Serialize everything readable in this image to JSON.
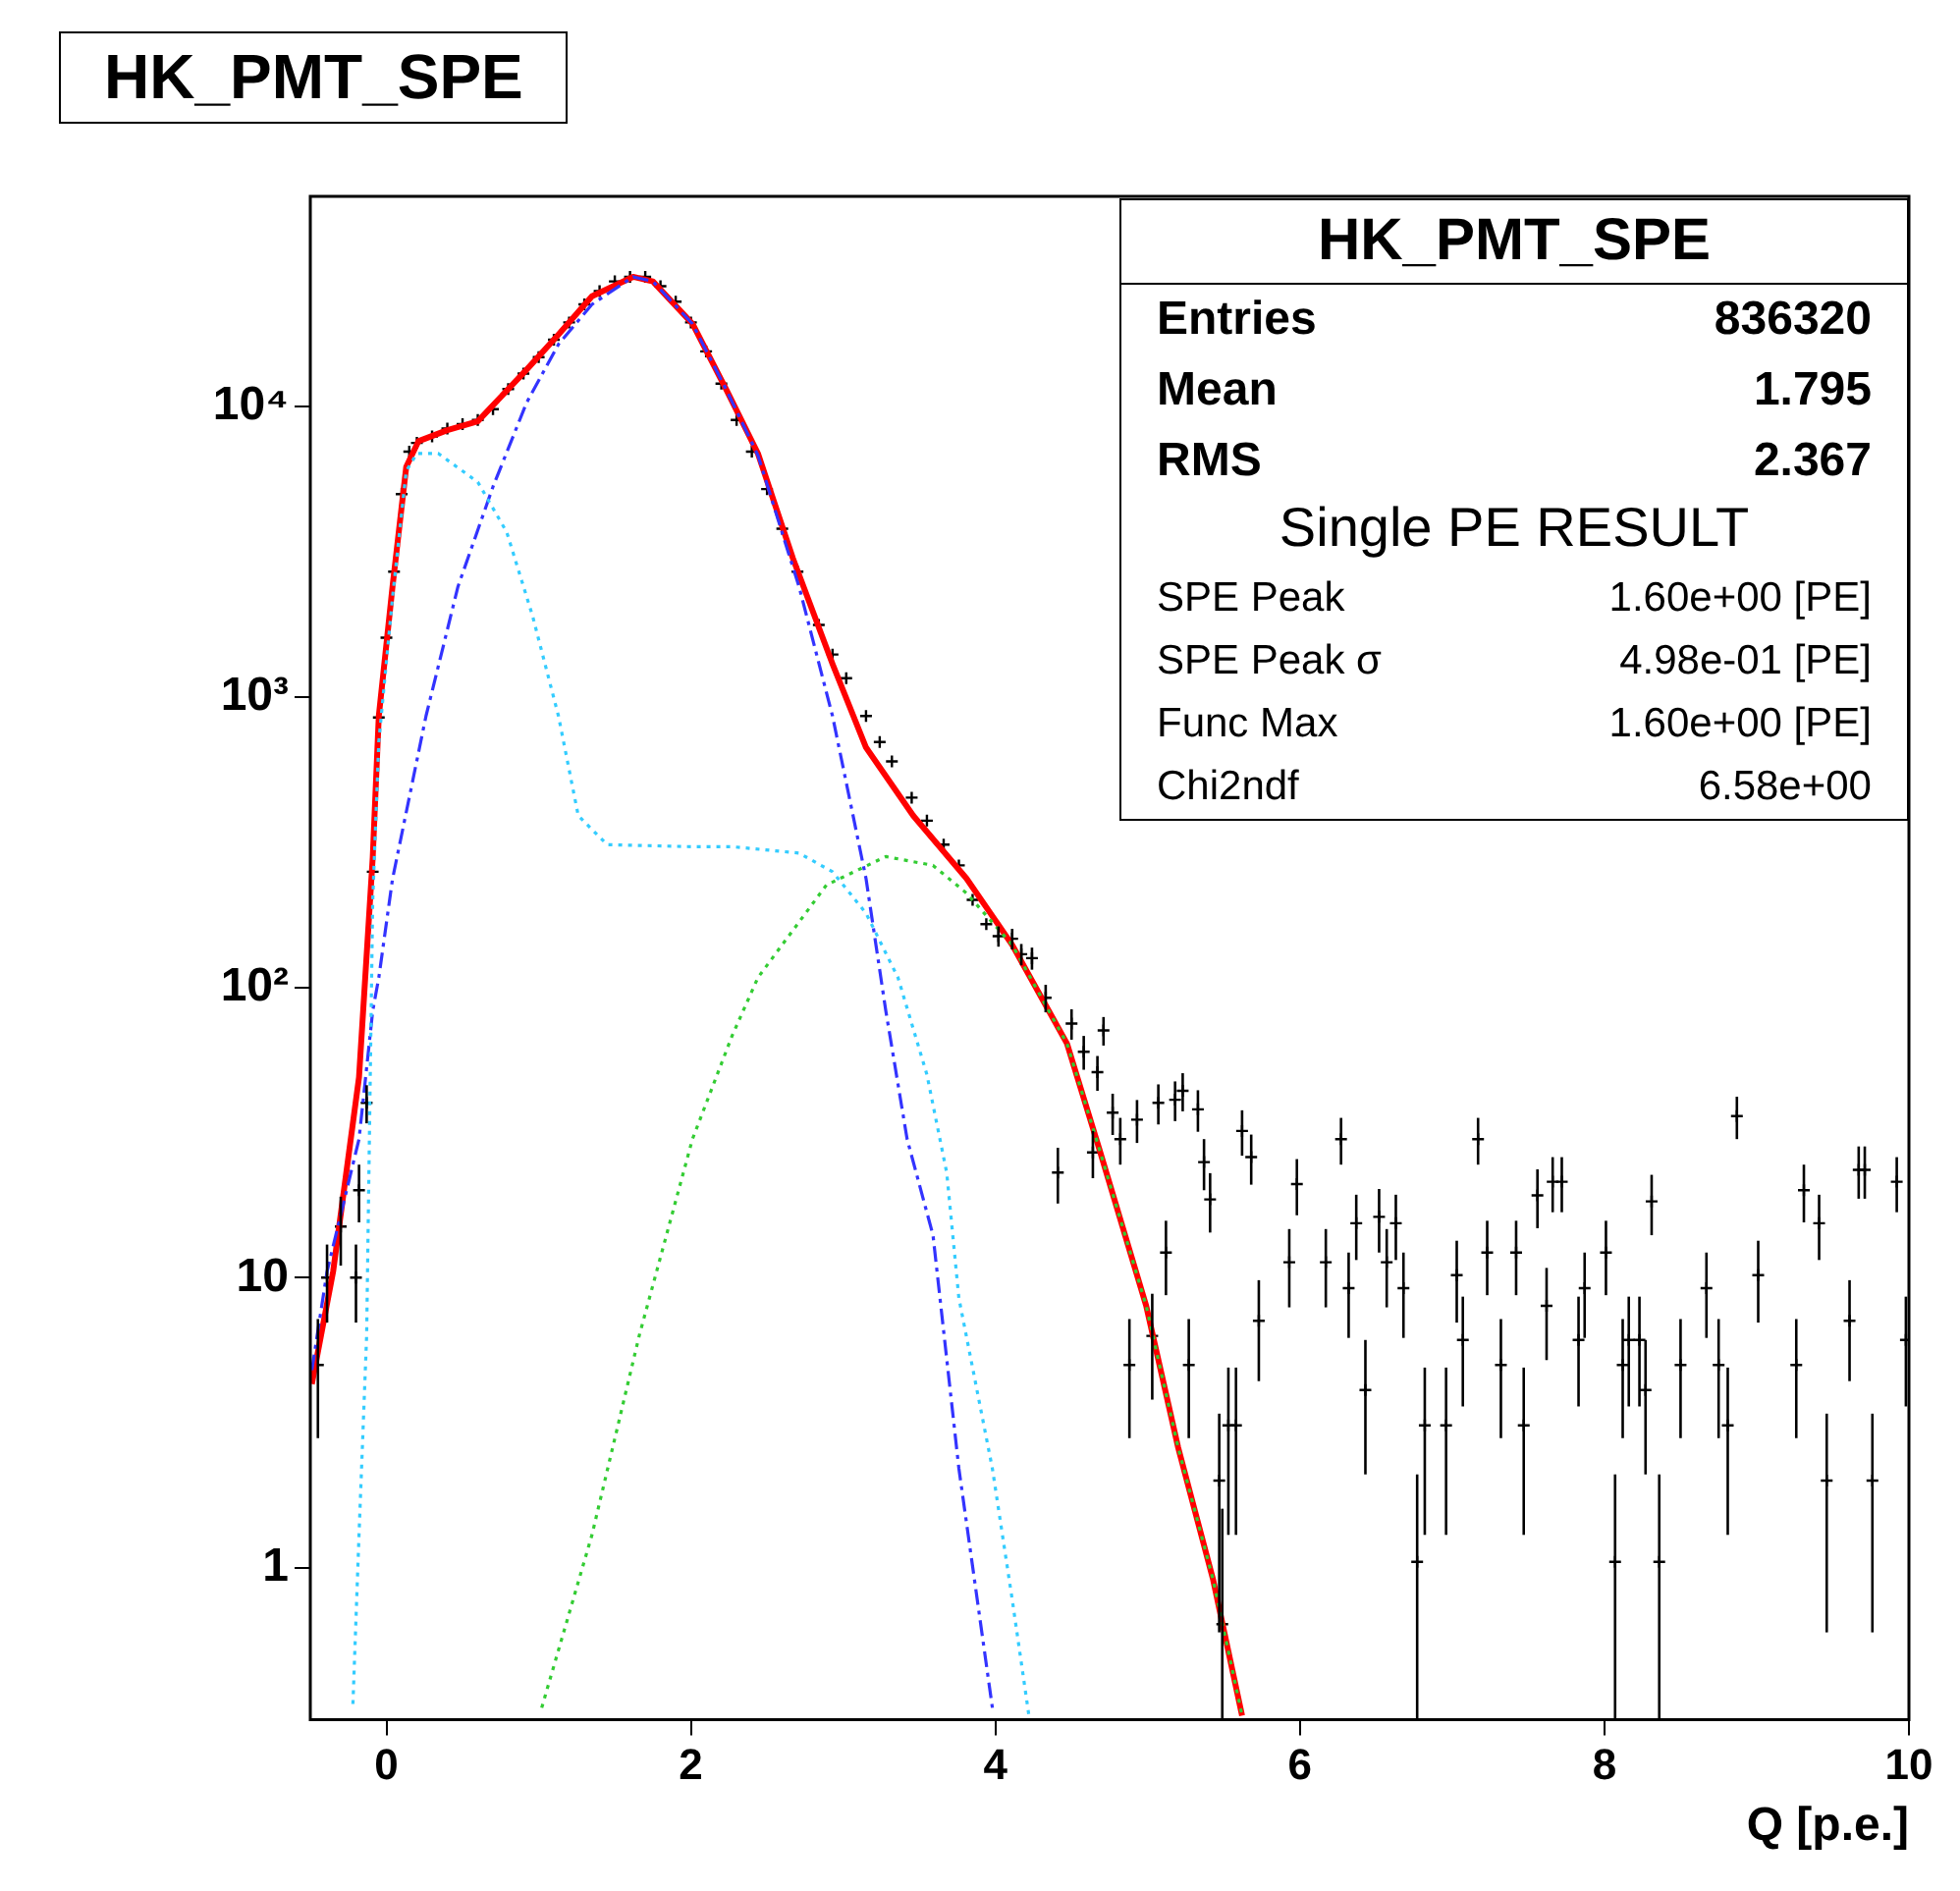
{
  "chart_data": {
    "type": "scatter",
    "title": "HK_PMT_SPE",
    "xlabel": "Q [p.e.]",
    "log": "y",
    "grid": false,
    "legend": false,
    "xlim": [
      -0.5,
      10
    ],
    "xticks": [
      0,
      2,
      4,
      6,
      8,
      10
    ],
    "ylim": [
      0.3,
      53000
    ],
    "yticks": [
      1,
      10,
      {
        "value": 100,
        "label": "10²"
      },
      {
        "value": 1000,
        "label": "10³"
      },
      {
        "value": 10000,
        "label": "10⁴"
      }
    ],
    "annotations": [
      "HK_PMT_SPE",
      "Entries",
      "836320",
      "Mean",
      "1.795",
      "RMS",
      "2.367",
      "Single PE RESULT",
      "SPE Peak",
      "1.60e+00 [PE]",
      "SPE Peak σ",
      "4.98e-01 [PE]",
      "Func Max",
      "1.60e+00 [PE]",
      "Chi2ndf",
      "6.58e+00"
    ],
    "series": [
      {
        "color": "#000000",
        "marker": "cross",
        "x": [
          -0.45,
          -0.39,
          -0.3,
          -0.2,
          -0.18,
          -0.13,
          -0.09,
          -0.05,
          0,
          0.05,
          0.1,
          0.15,
          0.2,
          0.3,
          0.4,
          0.5,
          0.6,
          0.7,
          0.8,
          0.9,
          1.0,
          1.1,
          1.2,
          1.3,
          1.4,
          1.5,
          1.6,
          1.7,
          1.8,
          1.9,
          2.0,
          2.1,
          2.2,
          2.3,
          2.4,
          2.5,
          2.6,
          2.7,
          2.84,
          2.93,
          3.02,
          3.15,
          3.24,
          3.32,
          3.45,
          3.55,
          3.66,
          3.76,
          3.85,
          3.94,
          4.02,
          4.11,
          4.17,
          4.24,
          4.33,
          4.41,
          4.5,
          4.58,
          4.64,
          4.67,
          4.71,
          4.77,
          4.82,
          4.88,
          4.93,
          5.03,
          5.07,
          5.12,
          5.18,
          5.23,
          5.27,
          5.33,
          5.37,
          5.41,
          5.47,
          5.49,
          5.53,
          5.58,
          5.62,
          5.68,
          5.73,
          5.93,
          5.98,
          6.17,
          6.27,
          6.32,
          6.37,
          6.43,
          6.52,
          6.57,
          6.63,
          6.68,
          6.77,
          6.82,
          6.96,
          7.03,
          7.07,
          7.17,
          7.23,
          7.32,
          7.42,
          7.47,
          7.56,
          7.62,
          7.66,
          7.72,
          7.83,
          7.87,
          8.01,
          8.07,
          8.12,
          8.16,
          8.23,
          8.27,
          8.31,
          8.36,
          8.5,
          8.67,
          8.75,
          8.81,
          8.87,
          9.01,
          9.26,
          9.31,
          9.41,
          9.46,
          9.61,
          9.67,
          9.71,
          9.76,
          9.92,
          9.98
        ],
        "values": [
          5,
          10,
          15,
          10,
          20,
          40,
          250,
          850,
          1600,
          2700,
          5000,
          7000,
          7500,
          7900,
          8400,
          8700,
          9000,
          9800,
          11500,
          13000,
          14800,
          17000,
          19500,
          22500,
          25000,
          27000,
          28000,
          28000,
          26000,
          23000,
          19500,
          15500,
          12000,
          9000,
          7000,
          5200,
          3800,
          2700,
          1770,
          1400,
          1160,
          860,
          700,
          600,
          450,
          375,
          310,
          263,
          200,
          165,
          150,
          147,
          130,
          126,
          92,
          23,
          75,
          60,
          27,
          51,
          71,
          37,
          30,
          5.0,
          35,
          6.3,
          40,
          12.2,
          41,
          44,
          5.0,
          38,
          25,
          18.6,
          2.0,
          0.64,
          3.1,
          3.1,
          32,
          26,
          7.1,
          11.3,
          21,
          11.3,
          30,
          9.2,
          15.4,
          4.1,
          16.2,
          11.3,
          15.4,
          9.2,
          1.05,
          3.1,
          3.1,
          10.2,
          6.1,
          30,
          12.2,
          5.0,
          12.2,
          3.1,
          19.2,
          8.0,
          21.4,
          21.4,
          6.1,
          9.2,
          12.2,
          1.05,
          5.0,
          6.1,
          6.1,
          4.1,
          18.3,
          1.05,
          5.0,
          9.2,
          5.0,
          3.1,
          36,
          10.2,
          5.0,
          20,
          15.4,
          2.0,
          7.1,
          23.5,
          23.5,
          2.0,
          21.4,
          6.1
        ],
        "errors": [
          2.2,
          3,
          4,
          3,
          4.5,
          6,
          null,
          null,
          null,
          null,
          null,
          null,
          null,
          null,
          null,
          null,
          null,
          null,
          null,
          null,
          null,
          null,
          null,
          null,
          null,
          null,
          null,
          null,
          null,
          null,
          null,
          null,
          null,
          null,
          null,
          null,
          null,
          null,
          null,
          null,
          null,
          null,
          null,
          null,
          null,
          null,
          null,
          null,
          null,
          null,
          12,
          12,
          11,
          11,
          10,
          5,
          9,
          8,
          5,
          7,
          8,
          6,
          5.5,
          2.2,
          5.9,
          2.5,
          6.3,
          3.5,
          6.4,
          6.6,
          2.2,
          6.2,
          5,
          4.3,
          1.4,
          [
            0.3,
            1.6
          ],
          1.8,
          1.8,
          5.7,
          5.1,
          2.7,
          3.4,
          4.6,
          3.4,
          5.5,
          3,
          3.9,
          2,
          4,
          3.4,
          3.9,
          3,
          [
            0.3,
            2.1
          ],
          1.8,
          1.8,
          3.2,
          2.5,
          5.5,
          3.5,
          2.2,
          3.5,
          1.8,
          4.4,
          2.8,
          4.6,
          4.6,
          2.5,
          3,
          3.5,
          [
            0.3,
            2.1
          ],
          2.2,
          2.5,
          2.5,
          2,
          4.3,
          [
            0.3,
            2.1
          ],
          2.2,
          3,
          2.2,
          1.8,
          6,
          3.2,
          2.2,
          4.5,
          3.9,
          1.4,
          2.7,
          4.8,
          4.8,
          1.4,
          4.6,
          2.5
        ]
      },
      {
        "type": "line",
        "color": "#ff0000",
        "line_style": "solid",
        "x": [
          -0.49,
          -0.35,
          -0.18,
          -0.09,
          -0.05,
          0.04,
          0.13,
          0.21,
          0.4,
          0.6,
          0.92,
          1.13,
          1.35,
          1.62,
          1.75,
          2.01,
          2.23,
          2.44,
          2.67,
          2.93,
          3.15,
          3.46,
          3.81,
          4.11,
          4.47,
          4.68,
          4.99,
          5.2,
          5.43,
          5.62
        ],
        "values": [
          4.3,
          10.5,
          49,
          280,
          860,
          2400,
          6200,
          7600,
          8300,
          8900,
          13400,
          17700,
          24000,
          28000,
          27000,
          19300,
          11500,
          6900,
          3000,
          1300,
          670,
          390,
          237,
          140,
          64,
          28,
          8,
          2.6,
          0.91,
          0.31
        ]
      },
      {
        "type": "line",
        "color": "#3333ff",
        "line_style": "dashed",
        "x": [
          -0.49,
          -0.39,
          -0.18,
          -0.09,
          -0.05,
          0.04,
          0.26,
          0.47,
          0.7,
          0.92,
          1.13,
          1.35,
          1.62,
          1.75,
          2.01,
          2.23,
          2.44,
          2.71,
          2.93,
          3.15,
          3.28,
          3.42,
          3.59,
          3.76,
          3.98
        ],
        "values": [
          4.8,
          10.5,
          30,
          83,
          108,
          236,
          860,
          2400,
          5300,
          10300,
          16400,
          22500,
          28000,
          27000,
          19300,
          11500,
          6800,
          2400,
          860,
          237,
          83,
          30,
          14,
          2.2,
          0.33
        ]
      },
      {
        "type": "line",
        "color": "#33ccff",
        "line_style": "dotted",
        "x": [
          -0.22,
          -0.18,
          -0.13,
          -0.09,
          -0.05,
          0.04,
          0.13,
          0.2,
          0.34,
          0.6,
          0.79,
          0.96,
          1.13,
          1.26,
          1.45,
          2.01,
          2.27,
          2.71,
          2.93,
          3.15,
          3.36,
          3.55,
          3.68,
          3.76,
          3.98,
          4.11,
          4.22
        ],
        "values": [
          0.34,
          1.3,
          6.3,
          200,
          700,
          2200,
          6000,
          6900,
          6900,
          5500,
          3700,
          1900,
          860,
          390,
          310,
          305,
          305,
          290,
          250,
          180,
          108,
          50,
          23,
          8.5,
          2.2,
          0.78,
          0.31
        ]
      },
      {
        "type": "line",
        "color": "#33cc33",
        "line_style": "dotted",
        "x": [
          1.02,
          1.35,
          1.66,
          2.01,
          2.27,
          2.44,
          2.89,
          3.28,
          3.59,
          3.81,
          4.11,
          4.47,
          4.68,
          4.99,
          5.2,
          5.43,
          5.62
        ],
        "values": [
          0.33,
          1.3,
          6.3,
          30,
          68,
          108,
          225,
          282,
          263,
          211,
          140,
          64,
          28,
          8,
          2.6,
          0.91,
          0.31
        ]
      }
    ]
  }
}
